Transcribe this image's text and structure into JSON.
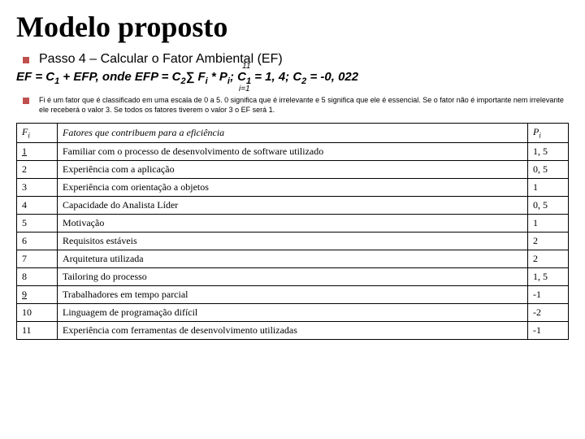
{
  "title": "Modelo proposto",
  "bullet1": "Passo 4 – Calcular o Fator Ambiental (EF)",
  "formula": {
    "pre": "EF = C",
    "s1": "1",
    "p2": " + EFP, onde EFP = C",
    "s2": "2",
    "sigma": "∑",
    "p3": " F",
    "si": "i",
    "p4": " * P",
    "sp": "i",
    "p5": "; C",
    "sc1": "1",
    "p6": " = 1, 4; C",
    "sc2": "2",
    "p7": " = -0, 022",
    "upper": "11",
    "lower": "i=1"
  },
  "note": "Fi é um fator que é classificado em uma escala de 0 a 5. 0 significa que é irrelevante e 5 significa que ele é essencial. Se o fator não é importante nem irrelevante ele receberá o valor 3. Se todos os fatores tiverem o valor 3 o EF será 1.",
  "headers": {
    "fi": "F",
    "fisub": "i",
    "desc": "Fatores que contribuem para a eficiência",
    "pi": "P",
    "pisub": "i"
  },
  "rows": [
    {
      "fi": "1",
      "fiu": true,
      "desc": "Familiar com o processo de desenvolvimento de software utilizado",
      "pi": "1, 5"
    },
    {
      "fi": "2",
      "fiu": false,
      "desc": "Experiência com a aplicação",
      "pi": "0, 5"
    },
    {
      "fi": "3",
      "fiu": false,
      "desc": "Experiência com orientação a objetos",
      "pi": "1"
    },
    {
      "fi": "4",
      "fiu": false,
      "desc": "Capacidade do Analista Líder",
      "pi": "0, 5"
    },
    {
      "fi": "5",
      "fiu": false,
      "desc": "Motivação",
      "pi": "1"
    },
    {
      "fi": "6",
      "fiu": false,
      "desc": "Requisitos estáveis",
      "pi": "2"
    },
    {
      "fi": "7",
      "fiu": false,
      "desc": "Arquitetura utilizada",
      "pi": "2"
    },
    {
      "fi": "8",
      "fiu": false,
      "desc": "Tailoring do processo",
      "pi": "1, 5"
    },
    {
      "fi": "9",
      "fiu": true,
      "desc": "Trabalhadores em tempo parcial",
      "pi": "-1"
    },
    {
      "fi": "10",
      "fiu": false,
      "desc": "Linguagem de programação difícil",
      "pi": "-2"
    },
    {
      "fi": "11",
      "fiu": false,
      "desc": "Experiência com ferramentas de desenvolvimento utilizadas",
      "pi": "-1"
    }
  ]
}
